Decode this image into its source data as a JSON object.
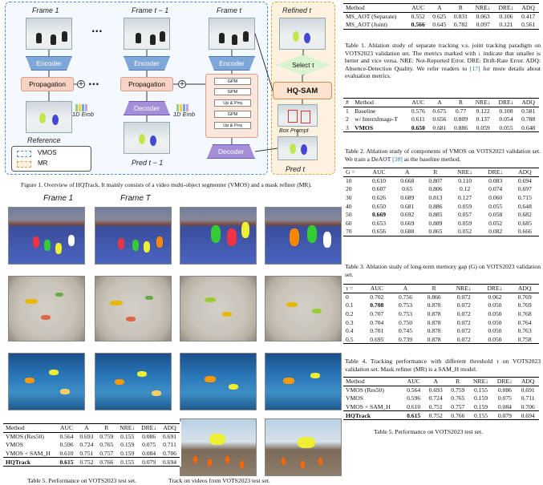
{
  "figure1": {
    "frame_labels": [
      "Frame 1",
      "Frame t − 1",
      "Frame t"
    ],
    "refined_label": "Refined t",
    "encoder_label": "Encoder",
    "propagation_label": "Propagation",
    "decoder_label": "Decoder",
    "emb_label": "1D Emb",
    "reference_label": "Reference",
    "pred_prev_label": "Pred t − 1",
    "pred_t_label": "Pred t",
    "select_label": "Select τ",
    "hqsam_label": "HQ-SAM",
    "box_prompt_label": "Box Prompt",
    "gpm_labels": [
      "GPM",
      "GPM",
      "Up & Proj",
      "GPM",
      "Up & Proj"
    ],
    "legend_vmos": "VMOS",
    "legend_mr": "MR",
    "ellipsis": "···",
    "caption": "Figure 1. Overview of HQTrack. It mainly consists of a video multi-object segmenter (VMOS) and a mask refiner (MR)."
  },
  "figure2": {
    "label_first": "Frame 1",
    "label_last": "Frame T",
    "caption_fragment": "Track on videos from VOTS2023 test set."
  },
  "table1": {
    "headers": [
      "Method",
      "AUC",
      "A",
      "R",
      "NRE↓",
      "DRE↓",
      "ADQ"
    ],
    "rows": [
      [
        "MS_AOT (Separate)",
        "0.552",
        "0.625",
        "0.831",
        "0.063",
        "0.106",
        "0.417"
      ],
      [
        "MS_AOT (Joint)",
        "0.566",
        "0.645",
        "0.782",
        "0.097",
        "0.121",
        "0.561"
      ]
    ],
    "caption_a": "Table 1. Ablation study of separate tracking v.s. joint tracking paradigm on VOTS2023 validation set. The metrics marked with ↓ indicate that smaller is better and vice versa. NRE: Not-Reported Error. DRE: Drift-Rate Error. ADQ: Absence-Detection Quality. We refer readers to ",
    "caption_ref": "[17]",
    "caption_b": " for more details about evaluation metrics."
  },
  "table2": {
    "headers": [
      "#",
      "Method",
      "AUC",
      "A",
      "R",
      "NRE↓",
      "DRE↓",
      "ADQ"
    ],
    "rows": [
      [
        "1",
        "Baseline",
        "0.576",
        "0.675",
        "0.77",
        "0.122",
        "0.108",
        "0.581"
      ],
      [
        "2",
        "w/ InternImage-T",
        "0.611",
        "0.656",
        "0.809",
        "0.137",
        "0.054",
        "0.788"
      ],
      [
        "3",
        "VMOS",
        "0.650",
        "0.681",
        "0.886",
        "0.059",
        "0.055",
        "0.648"
      ]
    ],
    "caption_a": "Table 2. Ablation study of components of VMOS on VOTS2023 validation set. We train a DeAOT ",
    "caption_ref": "[38]",
    "caption_b": " as the baseline method."
  },
  "table3": {
    "headers": [
      "G =",
      "AUC",
      "A",
      "R",
      "NRE↓",
      "DRE↓",
      "ADQ"
    ],
    "rows": [
      [
        "10",
        "0.610",
        "0.668",
        "0.807",
        "0.110",
        "0.083",
        "0.694"
      ],
      [
        "20",
        "0.607",
        "0.65",
        "0.806",
        "0.12",
        "0.074",
        "0.697"
      ],
      [
        "30",
        "0.626",
        "0.689",
        "0.813",
        "0.127",
        "0.060",
        "0.715"
      ],
      [
        "40",
        "0.650",
        "0.681",
        "0.886",
        "0.059",
        "0.055",
        "0.648"
      ],
      [
        "50",
        "0.669",
        "0.692",
        "0.885",
        "0.057",
        "0.058",
        "0.682"
      ],
      [
        "60",
        "0.653",
        "0.669",
        "0.889",
        "0.059",
        "0.052",
        "0.685"
      ],
      [
        "70",
        "0.656",
        "0.688",
        "0.865",
        "0.052",
        "0.082",
        "0.666"
      ]
    ],
    "caption": "Table 3. Ablation study of long-term memory gap (G) on VOTS2023 validation set."
  },
  "table4": {
    "headers": [
      "τ =",
      "AUC",
      "A",
      "R",
      "NRE↓",
      "DRE↓",
      "ADQ"
    ],
    "rows": [
      [
        "0",
        "0.702",
        "0.756",
        "0.866",
        "0.072",
        "0.062",
        "0.769"
      ],
      [
        "0.1",
        "0.708",
        "0.753",
        "0.878",
        "0.072",
        "0.050",
        "0.769"
      ],
      [
        "0.2",
        "0.707",
        "0.753",
        "0.878",
        "0.072",
        "0.050",
        "0.768"
      ],
      [
        "0.3",
        "0.704",
        "0.750",
        "0.878",
        "0.072",
        "0.050",
        "0.764"
      ],
      [
        "0.4",
        "0.701",
        "0.745",
        "0.878",
        "0.072",
        "0.050",
        "0.763"
      ],
      [
        "0.5",
        "0.695",
        "0.739",
        "0.878",
        "0.072",
        "0.050",
        "0.758"
      ]
    ],
    "caption": "Table 4. Tracking performance with different threshold τ on VOTS2023 validation set. Mask refiner (MR) is a SAM_H model."
  },
  "table5": {
    "headers": [
      "Method",
      "AUC",
      "A",
      "R",
      "NRE↓",
      "DRE↓",
      "ADQ"
    ],
    "rows": [
      [
        "VMOS (Res50)",
        "0.564",
        "0.693",
        "0.759",
        "0.155",
        "0.086",
        "0.691"
      ],
      [
        "VMOS",
        "0.596",
        "0.724",
        "0.765",
        "0.159",
        "0.075",
        "0.711"
      ],
      [
        "VMOS + SAM_H",
        "0.610",
        "0.751",
        "0.757",
        "0.159",
        "0.084",
        "0.706"
      ],
      [
        "HQTrack",
        "0.615",
        "0.752",
        "0.766",
        "0.155",
        "0.079",
        "0.694"
      ]
    ],
    "caption": "Table 5. Performance on VOTS2023 test set."
  }
}
